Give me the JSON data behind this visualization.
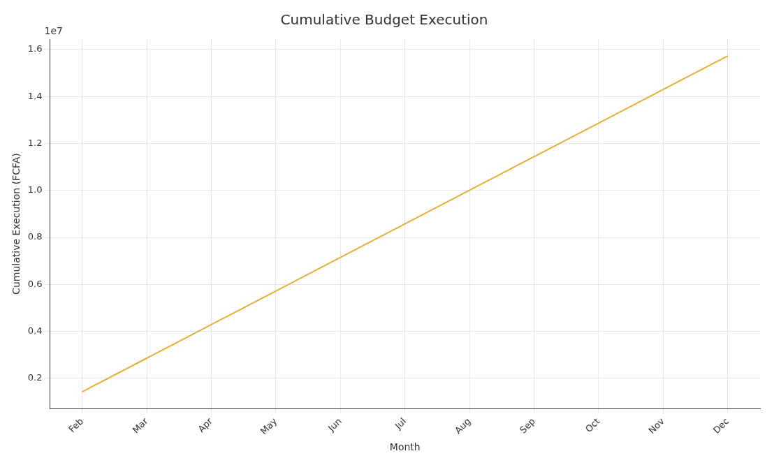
{
  "chart_data": {
    "type": "line",
    "title": "Cumulative Budget Execution",
    "xlabel": "Month",
    "ylabel": "Cumulative Execution (FCFA)",
    "categories": [
      "Feb",
      "Mar",
      "Apr",
      "May",
      "Jun",
      "Jul",
      "Aug",
      "Sep",
      "Oct",
      "Nov",
      "Dec"
    ],
    "series": [
      {
        "color": "#e5ae38",
        "values": [
          0.143,
          0.286,
          0.429,
          0.572,
          0.715,
          0.858,
          1.001,
          1.144,
          1.287,
          1.43,
          1.573
        ]
      }
    ],
    "ylim": [
      0.0715,
      1.6445
    ],
    "yticks": [
      0.2,
      0.4,
      0.6,
      0.8,
      {
        "value": 1,
        "label": "1.0"
      },
      1.2,
      1.4,
      1.6
    ],
    "annotations": [
      "1e7"
    ],
    "grid": true,
    "legend": false,
    "marker": "none",
    "line_style": "solid"
  }
}
